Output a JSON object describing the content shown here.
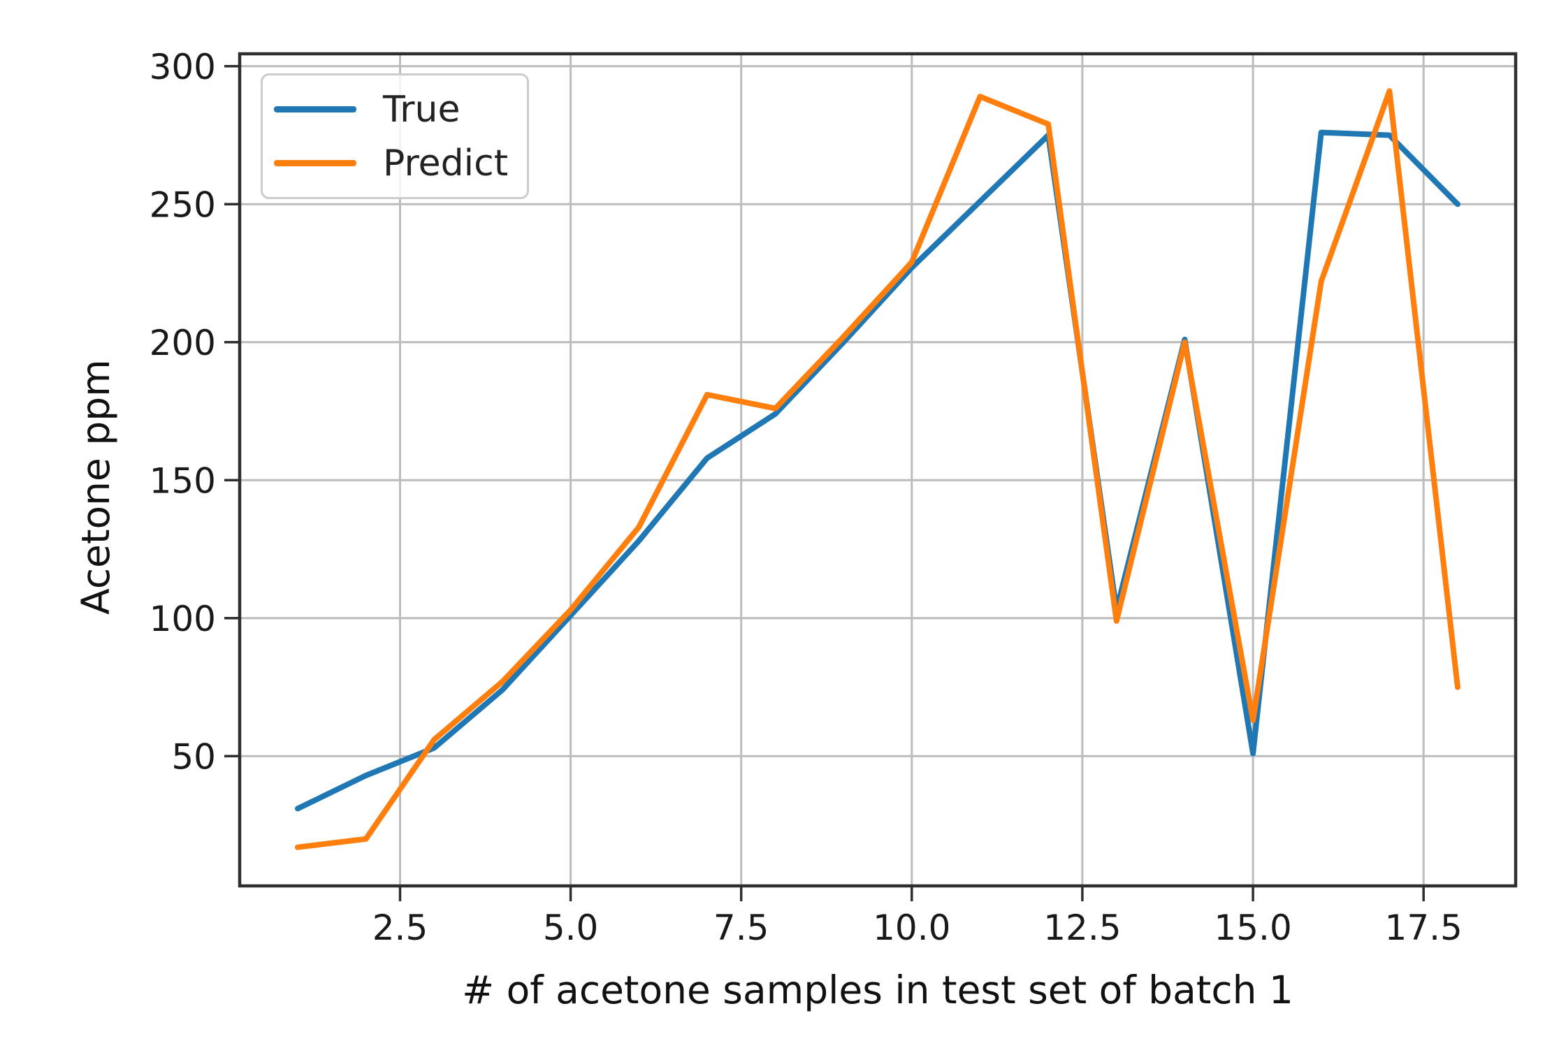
{
  "figure": {
    "background": "#ffffff"
  },
  "chart_data": {
    "type": "line",
    "title": "",
    "xlabel": "# of acetone samples in test set of batch 1",
    "ylabel": "Acetone ppm",
    "x": [
      1,
      2,
      3,
      4,
      5,
      6,
      7,
      8,
      9,
      10,
      11,
      12,
      13,
      14,
      15,
      16,
      17,
      18
    ],
    "series": [
      {
        "name": "True",
        "color": "#1f77b4",
        "values": [
          31,
          43,
          53,
          74,
          101,
          128,
          158,
          174,
          200,
          227,
          251,
          275,
          103,
          201,
          51,
          276,
          275,
          250
        ]
      },
      {
        "name": "Predict",
        "color": "#ff7f0e",
        "values": [
          17,
          20,
          56,
          77,
          103,
          133,
          181,
          176,
          202,
          229,
          289,
          279,
          99,
          200,
          63,
          222,
          291,
          75
        ]
      }
    ],
    "xlim": [
      0.15,
      18.85
    ],
    "ylim": [
      3,
      304.5
    ],
    "x_ticks": [
      2.5,
      5.0,
      7.5,
      10.0,
      12.5,
      15.0,
      17.5
    ],
    "x_tick_labels": [
      "2.5",
      "5.0",
      "7.5",
      "10.0",
      "12.5",
      "15.0",
      "17.5"
    ],
    "y_ticks": [
      50,
      100,
      150,
      200,
      250,
      300
    ],
    "y_tick_labels": [
      "50",
      "100",
      "150",
      "200",
      "250",
      "300"
    ],
    "grid": true,
    "legend_position": "upper left"
  },
  "legend": {
    "items": [
      {
        "label": "True",
        "color": "#1f77b4"
      },
      {
        "label": "Predict",
        "color": "#ff7f0e"
      }
    ]
  },
  "colors": {
    "grid": "#bcbcbc",
    "spine": "#2e2e2e",
    "text": "#191919"
  }
}
